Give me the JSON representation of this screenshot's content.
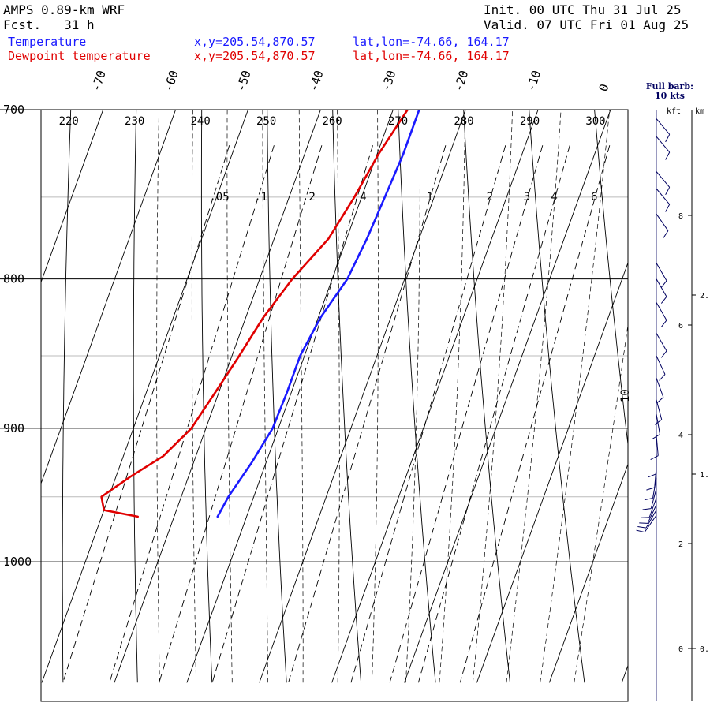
{
  "header": {
    "model": "AMPS 0.89-km WRF",
    "fcst": "Fcst.   31 h",
    "init": "Init. 00 UTC Thu 31 Jul 25",
    "valid": "Valid. 07 UTC Fri 01 Aug 25",
    "temp_label": "Temperature",
    "dew_label": "Dewpoint temperature",
    "xy": "x,y=205.54,870.57",
    "latlon": "lat,lon=-74.66, 164.17"
  },
  "barb_note": {
    "line1": "Full barb:",
    "line2": "10 kts"
  },
  "colors": {
    "temperature": "#1a1aff",
    "dewpoint": "#e00000",
    "wind": "#000060"
  },
  "chart_data": {
    "type": "line",
    "diagram": "skew-T log-p",
    "pressure_ticks": [
      "700",
      "800",
      "900",
      "1000"
    ],
    "pressure_range": [
      700,
      1040
    ],
    "isotherm_labels": [
      "-70",
      "-60",
      "-50",
      "-40",
      "-30",
      "-20",
      "-10",
      "0"
    ],
    "dry_adiabat_labels": [
      "220",
      "230",
      "240",
      "250",
      "260",
      "270",
      "280",
      "290",
      "300"
    ],
    "mixing_ratio_labels": [
      ".05",
      ".1",
      ".2",
      ".4",
      "1",
      "2",
      "3",
      "4",
      "6"
    ],
    "moist_adiabat_label": "10",
    "height_kft_labels": [
      "8",
      "6",
      "4",
      "2",
      "0"
    ],
    "height_km_labels": [
      "2.",
      "1.",
      "0."
    ],
    "height_axis_labels": {
      "kft": "kft",
      "km": "km"
    },
    "series": [
      {
        "name": "Temperature",
        "points": [
          {
            "p": 700,
            "t": -26.4
          },
          {
            "p": 725,
            "t": -26.4
          },
          {
            "p": 750,
            "t": -26.8
          },
          {
            "p": 775,
            "t": -27.2
          },
          {
            "p": 800,
            "t": -27.9
          },
          {
            "p": 825,
            "t": -29.7
          },
          {
            "p": 850,
            "t": -30.6
          },
          {
            "p": 875,
            "t": -30.6
          },
          {
            "p": 900,
            "t": -30.8
          },
          {
            "p": 925,
            "t": -32.0
          },
          {
            "p": 950,
            "t": -33.5
          },
          {
            "p": 965,
            "t": -34.0
          }
        ]
      },
      {
        "name": "Dewpoint temperature",
        "points": [
          {
            "p": 700,
            "t": -28.0
          },
          {
            "p": 725,
            "t": -29.8
          },
          {
            "p": 750,
            "t": -31.0
          },
          {
            "p": 775,
            "t": -32.5
          },
          {
            "p": 800,
            "t": -35.5
          },
          {
            "p": 825,
            "t": -37.6
          },
          {
            "p": 850,
            "t": -39.0
          },
          {
            "p": 875,
            "t": -40.5
          },
          {
            "p": 900,
            "t": -42.0
          },
          {
            "p": 920,
            "t": -44.5
          },
          {
            "p": 935,
            "t": -48.0
          },
          {
            "p": 950,
            "t": -51.0
          },
          {
            "p": 960,
            "t": -50.0
          },
          {
            "p": 965,
            "t": -45.0
          }
        ]
      }
    ],
    "wind": [
      {
        "p": 705,
        "speed_kt": 10,
        "dir_deg": 320
      },
      {
        "p": 715,
        "speed_kt": 10,
        "dir_deg": 320
      },
      {
        "p": 735,
        "speed_kt": 10,
        "dir_deg": 320
      },
      {
        "p": 745,
        "speed_kt": 10,
        "dir_deg": 320
      },
      {
        "p": 760,
        "speed_kt": 10,
        "dir_deg": 325
      },
      {
        "p": 790,
        "speed_kt": 10,
        "dir_deg": 330
      },
      {
        "p": 800,
        "speed_kt": 10,
        "dir_deg": 330
      },
      {
        "p": 815,
        "speed_kt": 10,
        "dir_deg": 330
      },
      {
        "p": 835,
        "speed_kt": 10,
        "dir_deg": 330
      },
      {
        "p": 850,
        "speed_kt": 10,
        "dir_deg": 335
      },
      {
        "p": 865,
        "speed_kt": 10,
        "dir_deg": 340
      },
      {
        "p": 880,
        "speed_kt": 10,
        "dir_deg": 345
      },
      {
        "p": 890,
        "speed_kt": 10,
        "dir_deg": 350
      },
      {
        "p": 905,
        "speed_kt": 10,
        "dir_deg": 355
      },
      {
        "p": 918,
        "speed_kt": 10,
        "dir_deg": 0
      },
      {
        "p": 928,
        "speed_kt": 10,
        "dir_deg": 5
      },
      {
        "p": 936,
        "speed_kt": 10,
        "dir_deg": 10
      },
      {
        "p": 944,
        "speed_kt": 10,
        "dir_deg": 15
      },
      {
        "p": 951,
        "speed_kt": 10,
        "dir_deg": 20
      },
      {
        "p": 956,
        "speed_kt": 10,
        "dir_deg": 25
      },
      {
        "p": 960,
        "speed_kt": 10,
        "dir_deg": 30
      },
      {
        "p": 964,
        "speed_kt": 10,
        "dir_deg": 35
      }
    ]
  }
}
